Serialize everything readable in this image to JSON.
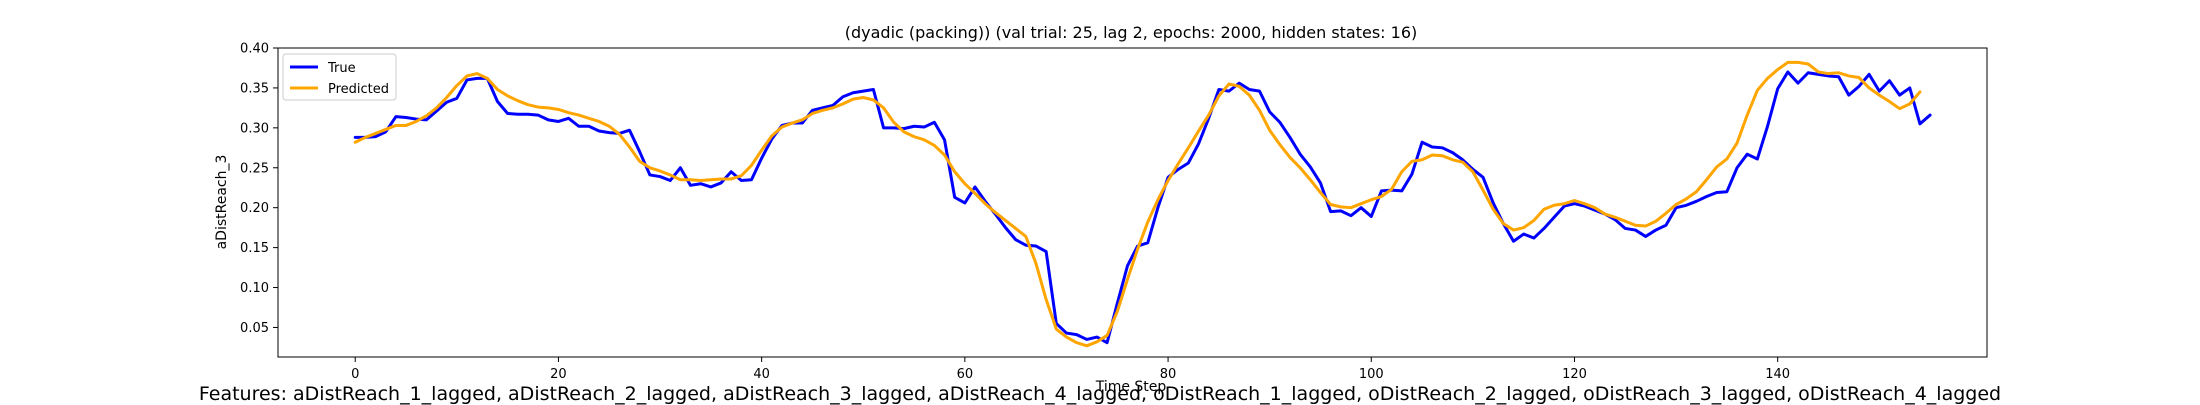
{
  "figure": {
    "caption": "Features: aDistReach_1_lagged, aDistReach_2_lagged, aDistReach_3_lagged, aDistReach_4_lagged, oDistReach_1_lagged, oDistReach_2_lagged, oDistReach_3_lagged, oDistReach_4_lagged"
  },
  "chart_data": {
    "type": "line",
    "title": "(dyadic (packing)) (val trial: 25, lag 2, epochs: 2000, hidden states: 16)",
    "xlabel": "Time Step",
    "ylabel": "aDistReach_3",
    "xlim": [
      -7.6,
      160.6
    ],
    "ylim": [
      0.013,
      0.4
    ],
    "xticks": [
      0,
      20,
      40,
      60,
      80,
      100,
      120,
      140
    ],
    "yticks": [
      0.05,
      0.1,
      0.15,
      0.2,
      0.25,
      0.3,
      0.35,
      0.4
    ],
    "ytick_labels": [
      "0.05",
      "0.10",
      "0.15",
      "0.20",
      "0.25",
      "0.30",
      "0.35",
      "0.40"
    ],
    "grid": false,
    "legend": "upper-left",
    "series": [
      {
        "name": "True",
        "color": "#0000ff",
        "values": [
          0.288,
          0.288,
          0.289,
          0.295,
          0.314,
          0.313,
          0.311,
          0.31,
          0.321,
          0.332,
          0.337,
          0.36,
          0.362,
          0.362,
          0.333,
          0.318,
          0.317,
          0.317,
          0.316,
          0.31,
          0.308,
          0.312,
          0.302,
          0.302,
          0.296,
          0.294,
          0.293,
          0.297,
          0.27,
          0.241,
          0.239,
          0.234,
          0.25,
          0.228,
          0.23,
          0.226,
          0.231,
          0.245,
          0.234,
          0.235,
          0.262,
          0.286,
          0.303,
          0.306,
          0.306,
          0.322,
          0.325,
          0.328,
          0.339,
          0.344,
          0.346,
          0.348,
          0.3,
          0.3,
          0.299,
          0.302,
          0.301,
          0.307,
          0.285,
          0.213,
          0.206,
          0.226,
          0.208,
          0.192,
          0.175,
          0.16,
          0.153,
          0.152,
          0.145,
          0.055,
          0.043,
          0.041,
          0.035,
          0.038,
          0.031,
          0.08,
          0.127,
          0.152,
          0.156,
          0.2,
          0.238,
          0.248,
          0.256,
          0.28,
          0.312,
          0.348,
          0.346,
          0.356,
          0.348,
          0.346,
          0.32,
          0.307,
          0.288,
          0.267,
          0.251,
          0.231,
          0.195,
          0.196,
          0.19,
          0.2,
          0.189,
          0.221,
          0.222,
          0.221,
          0.242,
          0.282,
          0.276,
          0.275,
          0.269,
          0.26,
          0.248,
          0.238,
          0.206,
          0.18,
          0.158,
          0.167,
          0.162,
          0.174,
          0.188,
          0.202,
          0.205,
          0.202,
          0.197,
          0.192,
          0.185,
          0.174,
          0.172,
          0.164,
          0.172,
          0.178,
          0.2,
          0.203,
          0.208,
          0.214,
          0.219,
          0.22,
          0.25,
          0.267,
          0.261,
          0.302,
          0.349,
          0.37,
          0.356,
          0.369,
          0.367,
          0.365,
          0.364,
          0.341,
          0.352,
          0.367,
          0.346,
          0.359,
          0.341,
          0.35,
          0.305,
          0.316
        ]
      },
      {
        "name": "Predicted",
        "color": "#ffa500",
        "values": [
          0.282,
          0.288,
          0.293,
          0.298,
          0.303,
          0.303,
          0.308,
          0.315,
          0.325,
          0.338,
          0.353,
          0.365,
          0.368,
          0.362,
          0.348,
          0.34,
          0.334,
          0.329,
          0.326,
          0.325,
          0.323,
          0.319,
          0.316,
          0.312,
          0.308,
          0.302,
          0.292,
          0.276,
          0.258,
          0.25,
          0.246,
          0.241,
          0.235,
          0.235,
          0.234,
          0.235,
          0.236,
          0.236,
          0.24,
          0.253,
          0.272,
          0.29,
          0.301,
          0.306,
          0.31,
          0.318,
          0.322,
          0.325,
          0.33,
          0.336,
          0.338,
          0.335,
          0.325,
          0.307,
          0.295,
          0.289,
          0.285,
          0.278,
          0.266,
          0.245,
          0.23,
          0.218,
          0.205,
          0.194,
          0.184,
          0.174,
          0.164,
          0.13,
          0.085,
          0.048,
          0.038,
          0.031,
          0.027,
          0.032,
          0.04,
          0.07,
          0.11,
          0.148,
          0.182,
          0.21,
          0.234,
          0.255,
          0.275,
          0.296,
          0.316,
          0.34,
          0.355,
          0.352,
          0.341,
          0.322,
          0.297,
          0.279,
          0.263,
          0.25,
          0.235,
          0.219,
          0.204,
          0.201,
          0.2,
          0.205,
          0.21,
          0.214,
          0.223,
          0.245,
          0.258,
          0.26,
          0.266,
          0.265,
          0.26,
          0.257,
          0.245,
          0.222,
          0.198,
          0.18,
          0.172,
          0.175,
          0.184,
          0.198,
          0.203,
          0.205,
          0.209,
          0.205,
          0.2,
          0.192,
          0.188,
          0.183,
          0.178,
          0.177,
          0.183,
          0.193,
          0.204,
          0.211,
          0.22,
          0.235,
          0.251,
          0.261,
          0.281,
          0.316,
          0.347,
          0.362,
          0.373,
          0.382,
          0.382,
          0.38,
          0.37,
          0.368,
          0.369,
          0.365,
          0.363,
          0.35,
          0.341,
          0.333,
          0.324,
          0.33,
          0.345
        ]
      }
    ]
  }
}
